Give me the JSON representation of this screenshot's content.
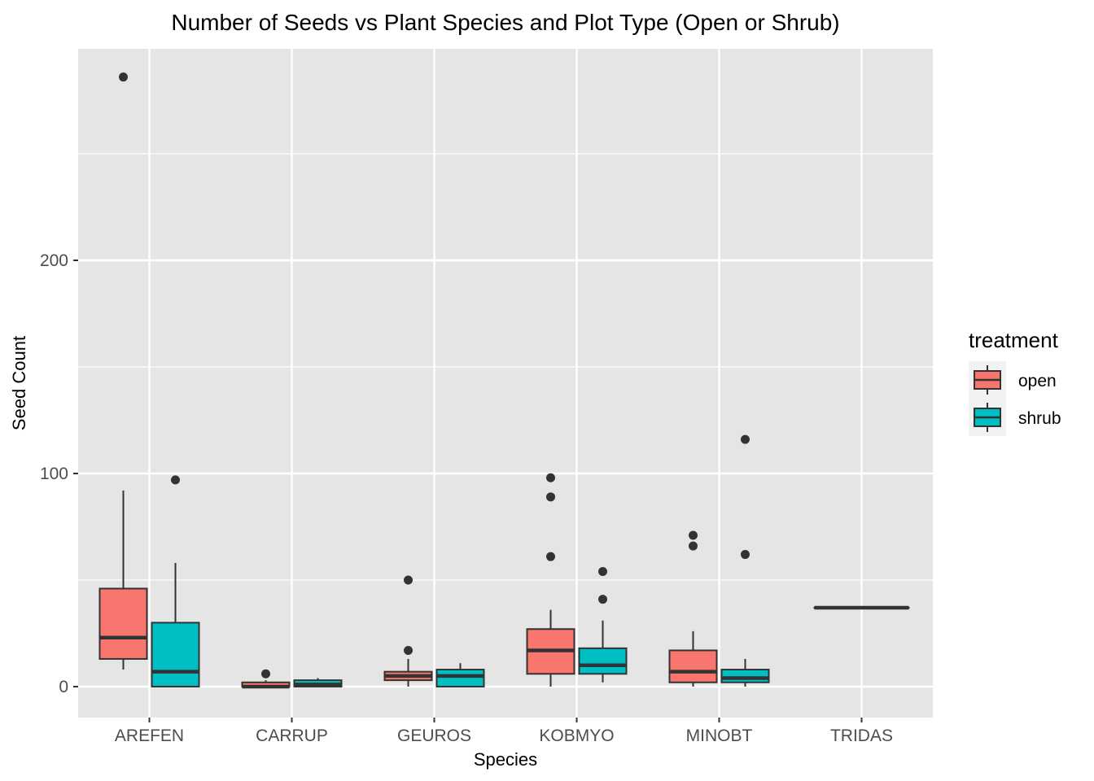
{
  "chart_data": {
    "type": "boxplot",
    "title": "Number of Seeds vs Plant Species and Plot Type (Open or Shrub)",
    "xlabel": "Species",
    "ylabel": "Seed Count",
    "categories": [
      "AREFEN",
      "CARRUP",
      "GEUROS",
      "KOBMYO",
      "MINOBT",
      "TRIDAS"
    ],
    "y_ticks": [
      0,
      100,
      200
    ],
    "ylim": [
      -14,
      300
    ],
    "grid": true,
    "legend": {
      "title": "treatment",
      "position": "right",
      "entries": [
        {
          "label": "open",
          "color": "#F8766D"
        },
        {
          "label": "shrub",
          "color": "#00BFC4"
        }
      ]
    },
    "series": [
      {
        "name": "open",
        "color": "#F8766D",
        "boxes": [
          {
            "category": "AREFEN",
            "whisker_low": 8,
            "q1": 13,
            "median": 23,
            "q3": 46,
            "whisker_high": 92,
            "outliers": [
              286
            ]
          },
          {
            "category": "CARRUP",
            "whisker_low": 0,
            "q1": 0,
            "median": 0,
            "q3": 2,
            "whisker_high": 3,
            "outliers": [
              6
            ]
          },
          {
            "category": "GEUROS",
            "whisker_low": 0,
            "q1": 3,
            "median": 5,
            "q3": 7,
            "whisker_high": 13,
            "outliers": [
              17,
              50
            ]
          },
          {
            "category": "KOBMYO",
            "whisker_low": 0,
            "q1": 6,
            "median": 17,
            "q3": 27,
            "whisker_high": 36,
            "outliers": [
              61,
              89,
              98
            ]
          },
          {
            "category": "MINOBT",
            "whisker_low": 0,
            "q1": 2,
            "median": 7,
            "q3": 17,
            "whisker_high": 26,
            "outliers": [
              66,
              71
            ]
          },
          {
            "category": "TRIDAS",
            "whisker_low": 37,
            "q1": 37,
            "median": 37,
            "q3": 37,
            "whisker_high": 37,
            "outliers": [],
            "full_width": true
          }
        ]
      },
      {
        "name": "shrub",
        "color": "#00BFC4",
        "boxes": [
          {
            "category": "AREFEN",
            "whisker_low": 0,
            "q1": 0,
            "median": 7,
            "q3": 30,
            "whisker_high": 58,
            "outliers": [
              97
            ]
          },
          {
            "category": "CARRUP",
            "whisker_low": 0,
            "q1": 0,
            "median": 1,
            "q3": 3,
            "whisker_high": 4,
            "outliers": []
          },
          {
            "category": "GEUROS",
            "whisker_low": 0,
            "q1": 0,
            "median": 5,
            "q3": 8,
            "whisker_high": 11,
            "outliers": []
          },
          {
            "category": "KOBMYO",
            "whisker_low": 2,
            "q1": 6,
            "median": 10,
            "q3": 18,
            "whisker_high": 31,
            "outliers": [
              41,
              54
            ]
          },
          {
            "category": "MINOBT",
            "whisker_low": 0,
            "q1": 2,
            "median": 4,
            "q3": 8,
            "whisker_high": 13,
            "outliers": [
              62,
              116
            ]
          }
        ]
      }
    ]
  }
}
